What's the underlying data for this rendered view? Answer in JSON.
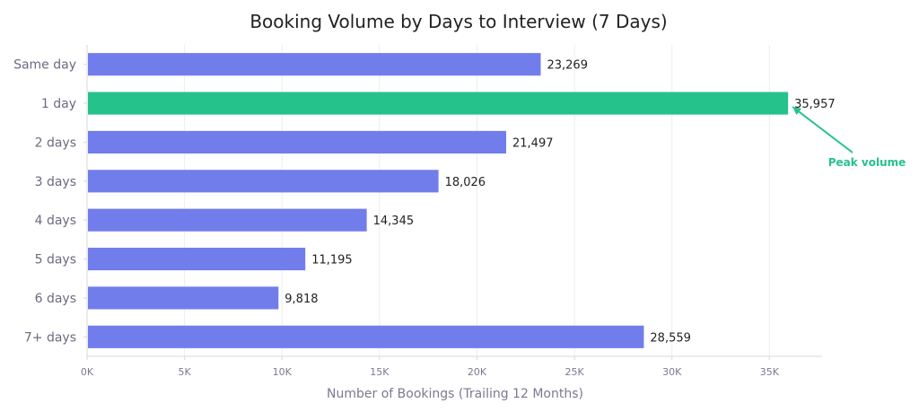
{
  "chart_data": {
    "type": "bar",
    "orientation": "horizontal",
    "title": "Booking Volume by Days to Interview (7 Days)",
    "xlabel": "Number of Bookings (Trailing 12 Months)",
    "ylabel": "",
    "categories": [
      "Same day",
      "1 day",
      "2 days",
      "3 days",
      "4 days",
      "5 days",
      "6 days",
      "7+ days"
    ],
    "values": [
      23269,
      35957,
      21497,
      18026,
      14345,
      11195,
      9818,
      28559
    ],
    "value_labels": [
      "23,269",
      "35,957",
      "21,497",
      "18,026",
      "14,345",
      "11,195",
      "9,818",
      "28,559"
    ],
    "xlim": [
      0,
      37700
    ],
    "xticks": [
      0,
      5000,
      10000,
      15000,
      20000,
      25000,
      30000,
      35000
    ],
    "xtick_labels": [
      "0K",
      "5K",
      "10K",
      "15K",
      "20K",
      "25K",
      "30K",
      "35K"
    ],
    "grid": "vertical",
    "highlight_index": 1,
    "colors": {
      "bar": "#717deb",
      "highlight": "#26c28b",
      "grid": "#ededf2",
      "axis": "#d9d9e0"
    },
    "annotation": {
      "text": "Peak volume",
      "target_index": 1,
      "color": "#26c28b"
    }
  }
}
